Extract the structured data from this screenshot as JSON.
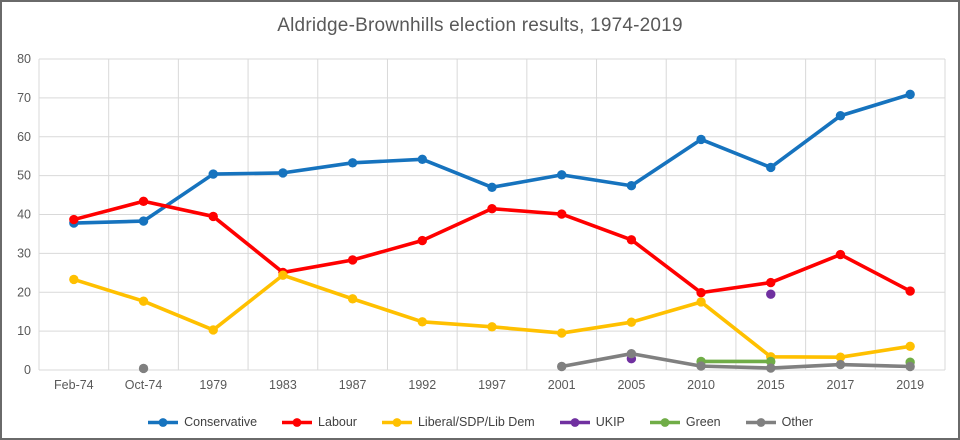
{
  "chart_data": {
    "type": "line",
    "title": "Aldridge-Brownhills election results, 1974-2019",
    "categories": [
      "Feb-74",
      "Oct-74",
      "1979",
      "1983",
      "1987",
      "1992",
      "1997",
      "2001",
      "2005",
      "2010",
      "2015",
      "2017",
      "2019"
    ],
    "series": [
      {
        "name": "Conservative",
        "color": "#1673BE",
        "values": [
          37.8,
          38.3,
          50.4,
          50.7,
          53.3,
          54.2,
          47.0,
          50.2,
          47.4,
          59.3,
          52.1,
          65.4,
          70.9
        ]
      },
      {
        "name": "Labour",
        "color": "#FF0000",
        "values": [
          38.7,
          43.4,
          39.5,
          25.1,
          28.3,
          33.3,
          41.5,
          40.1,
          33.5,
          19.9,
          22.5,
          29.7,
          20.3
        ]
      },
      {
        "name": "Liberal/SDP/Lib Dem",
        "color": "#FFC000",
        "values": [
          23.3,
          17.7,
          10.3,
          24.4,
          18.3,
          12.4,
          11.1,
          9.5,
          12.3,
          17.5,
          3.4,
          3.3,
          6.1
        ]
      },
      {
        "name": "UKIP",
        "color": "#7030A0",
        "values": [
          null,
          null,
          null,
          null,
          null,
          null,
          null,
          null,
          2.9,
          null,
          19.5,
          null,
          null
        ]
      },
      {
        "name": "Green",
        "color": "#70AD47",
        "values": [
          null,
          null,
          null,
          null,
          null,
          null,
          null,
          null,
          null,
          2.2,
          2.2,
          null,
          2.0
        ]
      },
      {
        "name": "Other",
        "color": "#808080",
        "values": [
          null,
          0.4,
          null,
          null,
          null,
          null,
          null,
          0.9,
          4.2,
          1.0,
          0.5,
          1.4,
          0.9
        ]
      }
    ],
    "xlabel": "",
    "ylabel": "",
    "ylim": [
      0,
      80
    ],
    "y_tick_step": 10,
    "y_tick_labels": [
      "0",
      "10",
      "20",
      "30",
      "40",
      "50",
      "60",
      "70",
      "80"
    ],
    "grid": true,
    "legend_position": "bottom"
  },
  "colors": {
    "grid": "#D9D9D9",
    "axis_text": "#595959",
    "title_text": "#595959",
    "legend_text": "#404040",
    "frame_border": "#6A6A6A",
    "background": "#FFFFFF"
  }
}
